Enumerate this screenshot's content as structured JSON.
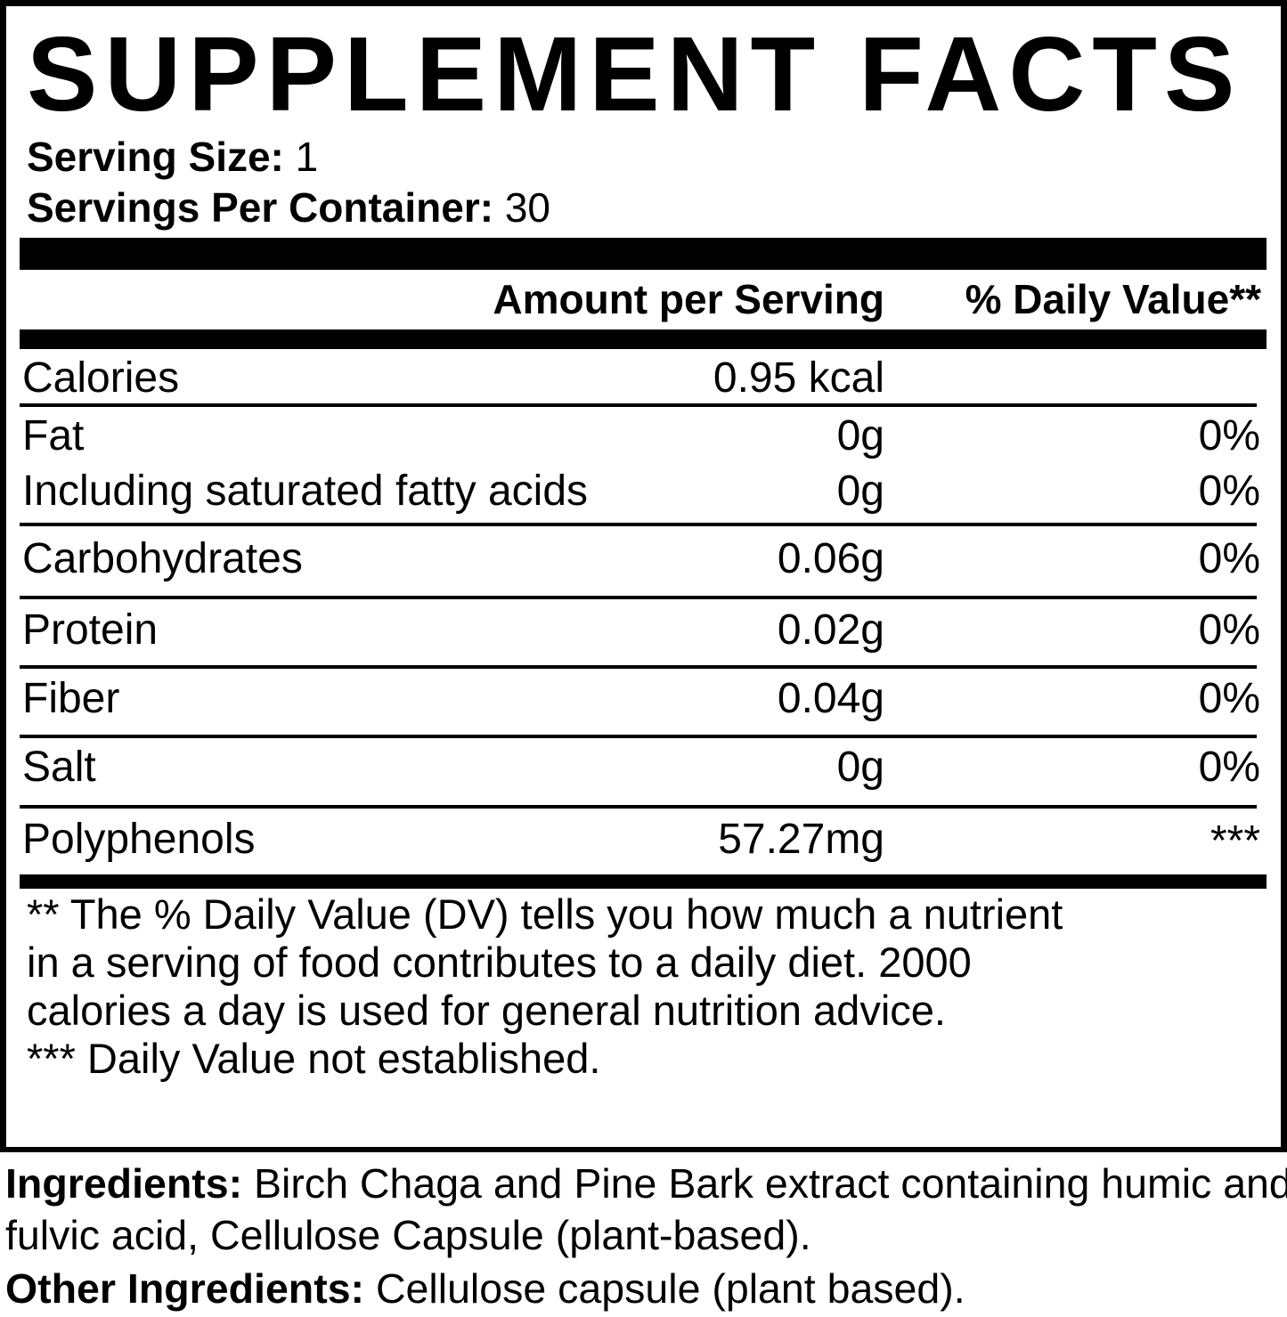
{
  "title": "SUPPLEMENT FACTS",
  "serving": {
    "size_label": "Serving Size:",
    "size_value": "1",
    "per_container_label": "Servings Per Container:",
    "per_container_value": "30"
  },
  "columns": {
    "amount": "Amount per Serving",
    "daily_value": "% Daily Value**"
  },
  "rows": [
    {
      "name": "Calories",
      "amount": "0.95 kcal",
      "dv": ""
    },
    {
      "name": "Fat",
      "amount": "0g",
      "dv": "0%"
    },
    {
      "name": "Including saturated fatty acids",
      "amount": "0g",
      "dv": "0%"
    },
    {
      "name": "Carbohydrates",
      "amount": "0.06g",
      "dv": "0%"
    },
    {
      "name": "Protein",
      "amount": "0.02g",
      "dv": "0%"
    },
    {
      "name": "Fiber",
      "amount": "0.04g",
      "dv": "0%"
    },
    {
      "name": "Salt",
      "amount": "0g",
      "dv": "0%"
    },
    {
      "name": "Polyphenols",
      "amount": "57.27mg",
      "dv": "***"
    }
  ],
  "footnotes": {
    "dv_note": "** The % Daily Value (DV) tells you how much a nutrient in a serving of food contributes to a daily diet. 2000 calories a day is used for general nutrition advice.",
    "not_established": "*** Daily Value not established."
  },
  "ingredients": {
    "label": "Ingredients:",
    "text": " Birch Chaga and Pine Bark extract containing humic and fulvic acid, Cellulose Capsule (plant-based).",
    "other_label": "Other Ingredients:",
    "other_text": " Cellulose capsule (plant based)."
  }
}
